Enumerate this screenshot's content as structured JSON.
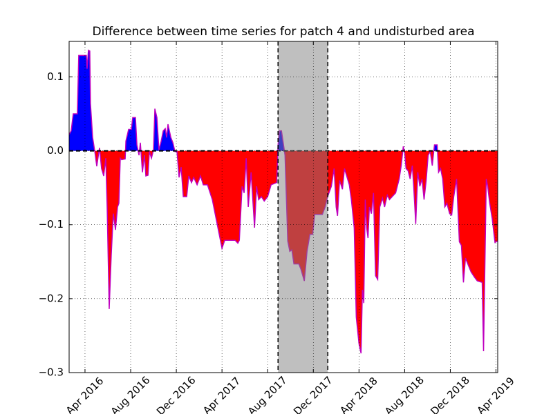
{
  "chart_data": {
    "type": "difference-area",
    "title": "Difference between time series for patch 4 and undisturbed area",
    "x": [
      1.61,
      1.79,
      1.97,
      2.33,
      2.45,
      3.12,
      3.18,
      3.3,
      3.42,
      3.48,
      3.67,
      3.85,
      4.03,
      4.27,
      4.45,
      4.64,
      4.82,
      4.94,
      5.12,
      5.3,
      5.48,
      5.67,
      5.85,
      5.97,
      6.09,
      6.21,
      6.52,
      6.58,
      6.82,
      7.06,
      7.18,
      7.42,
      7.55,
      7.73,
      7.85,
      8.03,
      8.21,
      8.33,
      8.52,
      8.64,
      8.82,
      9.0,
      9.12,
      9.3,
      9.48,
      9.67,
      9.85,
      10.03,
      10.15,
      10.27,
      10.52,
      10.7,
      10.88,
      11.06,
      11.24,
      11.42,
      11.61,
      11.91,
      12.09,
      12.33,
      12.52,
      12.82,
      13.12,
      13.36,
      13.73,
      14.15,
      15.0,
      15.24,
      16.15,
      16.39,
      16.52,
      16.76,
      16.94,
      17.12,
      17.3,
      17.55,
      17.85,
      18.03,
      18.21,
      18.45,
      18.7,
      19.0,
      19.3,
      19.79,
      19.91,
      20.03,
      20.21,
      20.39,
      20.52,
      20.76,
      20.94,
      21.12,
      21.3,
      21.73,
      21.91,
      22.21,
      22.45,
      22.7,
      22.94,
      23.12,
      23.42,
      23.79,
      24.03,
      24.27,
      24.58,
      24.82,
      25.0,
      25.12,
      25.3,
      25.55,
      25.73,
      26.15,
      26.33,
      26.58,
      26.76,
      27.0,
      27.18,
      27.3,
      27.42,
      27.55,
      27.67,
      27.79,
      27.91,
      28.09,
      28.27,
      28.45,
      28.64,
      28.82,
      29.06,
      29.24,
      29.48,
      29.67,
      29.91,
      30.21,
      30.52,
      30.7,
      30.88,
      31.0,
      31.12,
      31.3,
      31.48,
      31.67,
      31.79,
      31.97,
      32.15,
      32.33,
      32.52,
      32.7,
      32.88,
      33.06,
      33.24,
      33.42,
      33.61,
      33.85,
      33.97,
      34.15,
      34.33,
      34.52,
      34.7,
      34.94,
      35.12,
      35.3,
      35.55,
      35.79,
      35.97,
      36.15,
      36.33,
      36.58,
      36.82,
      37.12,
      37.36,
      37.79,
      37.91,
      38.15,
      38.27,
      38.45,
      38.67,
      38.91,
      39.15
    ],
    "values": [
      0.022,
      0.027,
      0.05,
      0.05,
      0.129,
      0.129,
      0.111,
      0.136,
      0.135,
      0.064,
      0.018,
      0.0,
      -0.021,
      0.004,
      -0.024,
      -0.034,
      -0.01,
      -0.076,
      -0.214,
      -0.141,
      -0.085,
      -0.107,
      -0.076,
      -0.071,
      -0.01,
      -0.012,
      -0.011,
      0.013,
      0.029,
      0.029,
      0.045,
      0.045,
      0.008,
      -0.006,
      0.011,
      -0.029,
      -0.006,
      -0.034,
      -0.033,
      -0.001,
      -0.01,
      0.001,
      0.057,
      0.045,
      0.001,
      0.013,
      0.027,
      0.03,
      0.018,
      0.036,
      0.018,
      0.011,
      -0.001,
      -0.001,
      -0.036,
      -0.022,
      -0.062,
      -0.062,
      -0.034,
      -0.043,
      -0.036,
      -0.046,
      -0.034,
      -0.046,
      -0.046,
      -0.066,
      -0.132,
      -0.121,
      -0.121,
      -0.125,
      -0.121,
      -0.048,
      -0.057,
      -0.01,
      -0.076,
      -0.029,
      -0.104,
      -0.048,
      -0.066,
      -0.062,
      -0.068,
      -0.062,
      -0.046,
      -0.043,
      0.008,
      0.027,
      0.027,
      0.008,
      -0.006,
      -0.122,
      -0.136,
      -0.134,
      -0.153,
      -0.153,
      -0.16,
      -0.176,
      -0.136,
      -0.113,
      -0.113,
      -0.086,
      -0.086,
      -0.086,
      -0.076,
      -0.061,
      -0.048,
      -0.024,
      -0.076,
      -0.088,
      -0.04,
      -0.052,
      -0.024,
      -0.046,
      -0.066,
      -0.104,
      -0.225,
      -0.261,
      -0.274,
      -0.188,
      -0.206,
      -0.066,
      -0.104,
      -0.118,
      -0.076,
      -0.085,
      -0.057,
      -0.169,
      -0.174,
      -0.076,
      -0.064,
      -0.076,
      -0.06,
      -0.066,
      -0.062,
      -0.057,
      -0.038,
      -0.02,
      0.006,
      -0.003,
      -0.024,
      -0.027,
      -0.038,
      -0.02,
      -0.048,
      -0.099,
      -0.029,
      -0.048,
      -0.038,
      -0.066,
      -0.041,
      -0.006,
      -0.001,
      -0.02,
      0.008,
      0.008,
      -0.029,
      -0.024,
      -0.038,
      -0.076,
      -0.071,
      -0.085,
      -0.087,
      -0.062,
      -0.038,
      -0.123,
      -0.128,
      -0.178,
      -0.145,
      -0.155,
      -0.164,
      -0.171,
      -0.176,
      -0.178,
      -0.271,
      -0.038,
      -0.048,
      -0.071,
      -0.092,
      -0.124,
      -0.122
    ],
    "positive_color": "#0000ff",
    "negative_color": "#ff0000",
    "line_color": "#bf00bf",
    "span": [
      19.91,
      24.27
    ],
    "span_color": "#808080",
    "xlim": [
      1.61,
      39.15
    ],
    "xticks": [
      {
        "value": 3,
        "label": "Apr 2016"
      },
      {
        "value": 7,
        "label": "Aug 2016"
      },
      {
        "value": 11,
        "label": "Dec 2016"
      },
      {
        "value": 15,
        "label": "Apr 2017"
      },
      {
        "value": 19,
        "label": "Aug 2017"
      },
      {
        "value": 23,
        "label": "Dec 2017"
      },
      {
        "value": 27,
        "label": "Apr 2018"
      },
      {
        "value": 31,
        "label": "Aug 2018"
      },
      {
        "value": 35,
        "label": "Dec 2018"
      },
      {
        "value": 39,
        "label": "Apr 2019"
      }
    ],
    "ylim": [
      -0.3,
      0.148
    ],
    "yticks": [
      {
        "value": -0.3,
        "label": "−0.3"
      },
      {
        "value": -0.2,
        "label": "−0.2"
      },
      {
        "value": -0.1,
        "label": "−0.1"
      },
      {
        "value": 0,
        "label": "0.0"
      },
      0.1
    ],
    "grid": true
  }
}
